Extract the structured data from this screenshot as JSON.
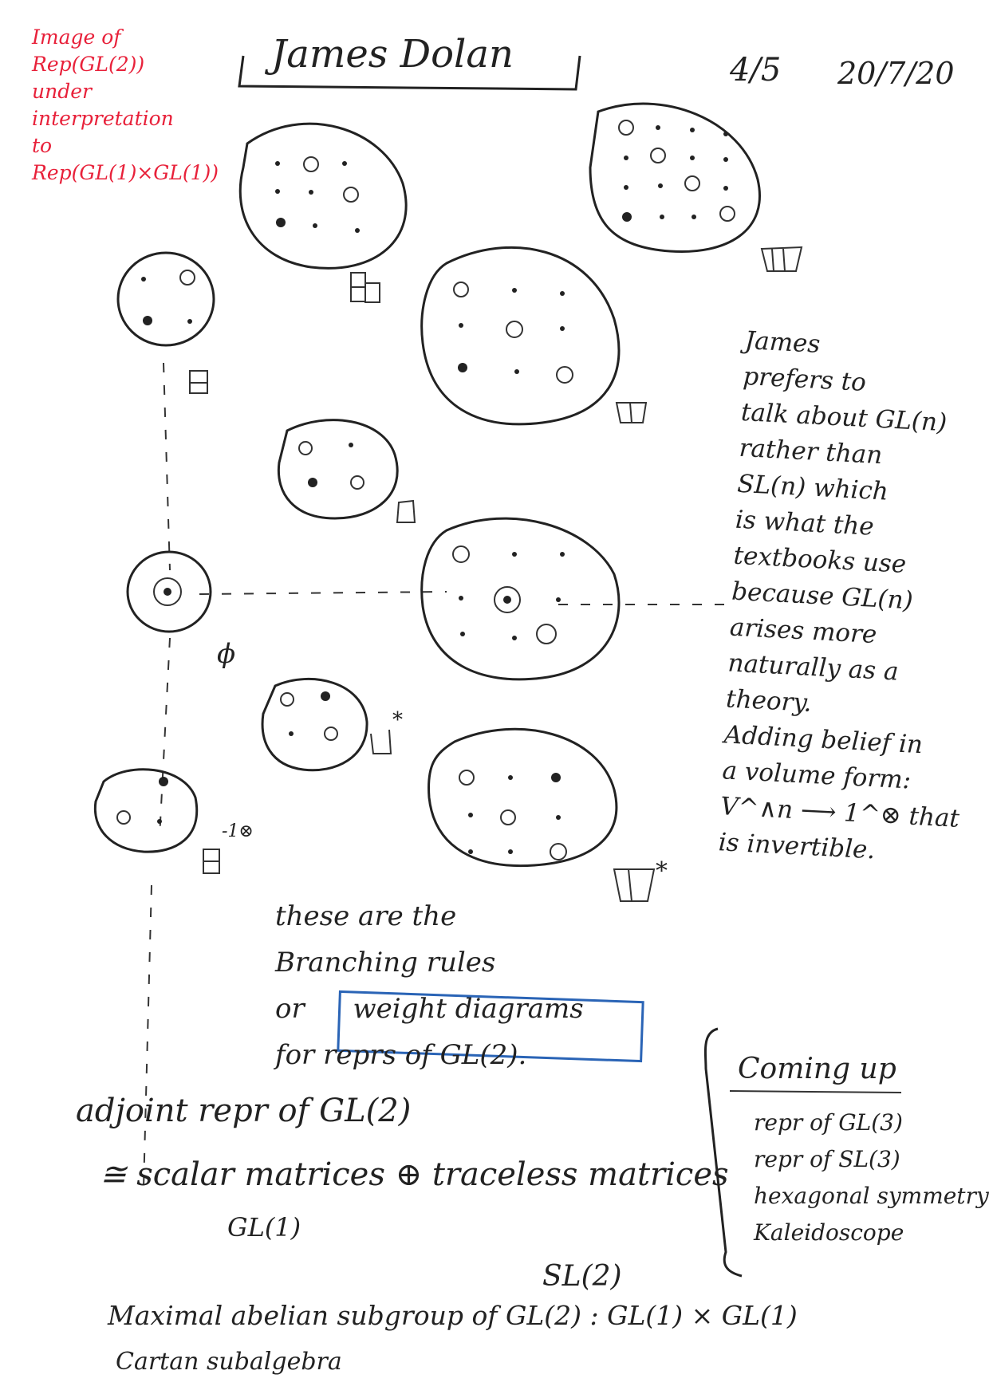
{
  "header": {
    "red_note": [
      "Image of",
      "Rep(GL(2))",
      "under",
      "interpretation",
      "to",
      "Rep(GL(1)×GL(1))"
    ],
    "title": "James Dolan",
    "page": "4/5",
    "date": "20/7/20"
  },
  "diagram_labels": {
    "young_2_1": "⊞",
    "young_3_1": "⊞",
    "young_2": "◫",
    "young_col": "⊟",
    "young_box": "□",
    "phi": "ϕ",
    "dual": "*",
    "inverse": "-1⊗"
  },
  "side_note": {
    "lines": [
      "James",
      "prefers to",
      "talk about GL(n)",
      "rather than",
      "SL(n) which",
      "is what the",
      "textbooks use",
      "because GL(n)",
      "arises more",
      "naturally as a",
      "theory.",
      "Adding belief in",
      "a volume form:",
      "V^∧n ⟶ 1^⊗ that",
      "is invertible."
    ]
  },
  "middle_note": {
    "line1": "these are the",
    "line2": "Branching rules",
    "line3_prefix": "or",
    "boxed": "weight diagrams",
    "line4": "for reprs of GL(2)."
  },
  "coming_up": {
    "heading": "Coming up",
    "items": [
      "repr of GL(3)",
      "repr of SL(3)",
      "hexagonal symmetry",
      "Kaleidoscope"
    ]
  },
  "bottom": {
    "line1": "adjoint repr of GL(2)",
    "line2_a": "≅ scalar matrices",
    "line2_op": "⊕",
    "line2_b": "traceless matrices",
    "sub1": "GL(1)",
    "sub2": "SL(2)",
    "line3": "Maximal abelian subgroup of GL(2) : GL(1) × GL(1)",
    "line4": "Cartan subalgebra"
  }
}
